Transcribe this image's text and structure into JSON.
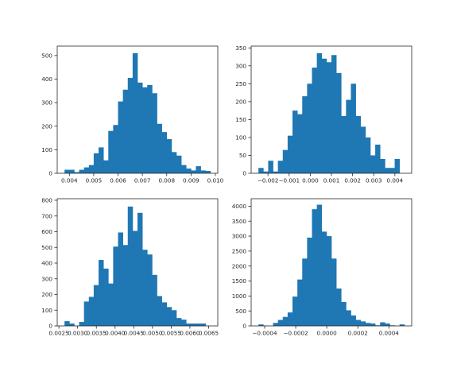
{
  "chart_data": [
    {
      "type": "bar",
      "subtype": "histogram",
      "bins": 30,
      "bin_range": [
        0.0038,
        0.0098
      ],
      "ylim": [
        0,
        540
      ],
      "xticks": [
        "0.004",
        "0.005",
        "0.006",
        "0.007",
        "0.008",
        "0.009",
        "0.010"
      ],
      "xtick_values": [
        0.004,
        0.005,
        0.006,
        0.007,
        0.008,
        0.009,
        0.01
      ],
      "yticks": [
        "0",
        "100",
        "200",
        "300",
        "400",
        "500"
      ],
      "ytick_values": [
        0,
        100,
        200,
        300,
        400,
        500
      ],
      "values": [
        15,
        15,
        5,
        15,
        25,
        35,
        85,
        110,
        55,
        180,
        205,
        305,
        355,
        405,
        510,
        385,
        365,
        375,
        340,
        210,
        175,
        145,
        90,
        75,
        35,
        20,
        12,
        30,
        12,
        10
      ]
    },
    {
      "type": "bar",
      "subtype": "histogram",
      "bins": 30,
      "bin_range": [
        -0.00245,
        0.00445
      ],
      "ylim": [
        0,
        355
      ],
      "xticks": [
        "−0.002",
        "−0.001",
        "0.000",
        "0.001",
        "0.002",
        "0.003",
        "0.004"
      ],
      "xtick_values": [
        -0.002,
        -0.001,
        0.0,
        0.001,
        0.002,
        0.003,
        0.004
      ],
      "yticks": [
        "0",
        "50",
        "100",
        "150",
        "200",
        "250",
        "300",
        "350"
      ],
      "ytick_values": [
        0,
        50,
        100,
        150,
        200,
        250,
        300,
        350
      ],
      "values": [
        15,
        5,
        35,
        5,
        35,
        65,
        105,
        175,
        165,
        215,
        250,
        295,
        335,
        320,
        310,
        330,
        280,
        160,
        205,
        250,
        160,
        130,
        100,
        50,
        80,
        40,
        15,
        15,
        40,
        0
      ]
    },
    {
      "type": "bar",
      "subtype": "histogram",
      "bins": 30,
      "bin_range": [
        0.00265,
        0.00655
      ],
      "ylim": [
        0,
        810
      ],
      "xticks": [
        "0.0025",
        "0.0030",
        "0.0035",
        "0.0040",
        "0.0045",
        "0.0050",
        "0.0055",
        "0.0060",
        "0.0065"
      ],
      "xtick_values": [
        0.0025,
        0.003,
        0.0035,
        0.004,
        0.0045,
        0.005,
        0.0055,
        0.006,
        0.0065
      ],
      "yticks": [
        "0",
        "100",
        "200",
        "300",
        "400",
        "500",
        "600",
        "700",
        "800"
      ],
      "ytick_values": [
        0,
        100,
        200,
        300,
        400,
        500,
        600,
        700,
        800
      ],
      "values": [
        30,
        15,
        0,
        25,
        155,
        185,
        260,
        420,
        365,
        270,
        505,
        595,
        515,
        760,
        605,
        720,
        485,
        455,
        325,
        190,
        150,
        120,
        100,
        50,
        40,
        15,
        15,
        15,
        15,
        0
      ]
    },
    {
      "type": "bar",
      "subtype": "histogram",
      "bins": 30,
      "bin_range": [
        -0.00044,
        0.0005
      ],
      "ylim": [
        0,
        4250
      ],
      "xticks": [
        "−0.0004",
        "−0.0002",
        "0.0000",
        "0.0002",
        "0.0004"
      ],
      "xtick_values": [
        -0.0004,
        -0.0002,
        0.0,
        0.0002,
        0.0004
      ],
      "yticks": [
        "0",
        "500",
        "1000",
        "1500",
        "2000",
        "2500",
        "3000",
        "3500",
        "4000"
      ],
      "ytick_values": [
        0,
        500,
        1000,
        1500,
        2000,
        2500,
        3000,
        3500,
        4000
      ],
      "values": [
        50,
        10,
        0,
        100,
        200,
        300,
        450,
        980,
        1550,
        2250,
        2950,
        3900,
        4050,
        3150,
        3000,
        2250,
        1250,
        800,
        520,
        350,
        200,
        150,
        100,
        80,
        20,
        120,
        80,
        20,
        0,
        50
      ]
    }
  ],
  "colors": {
    "bar": "#1f77b4",
    "axis": "#262626",
    "background": "#ffffff"
  }
}
